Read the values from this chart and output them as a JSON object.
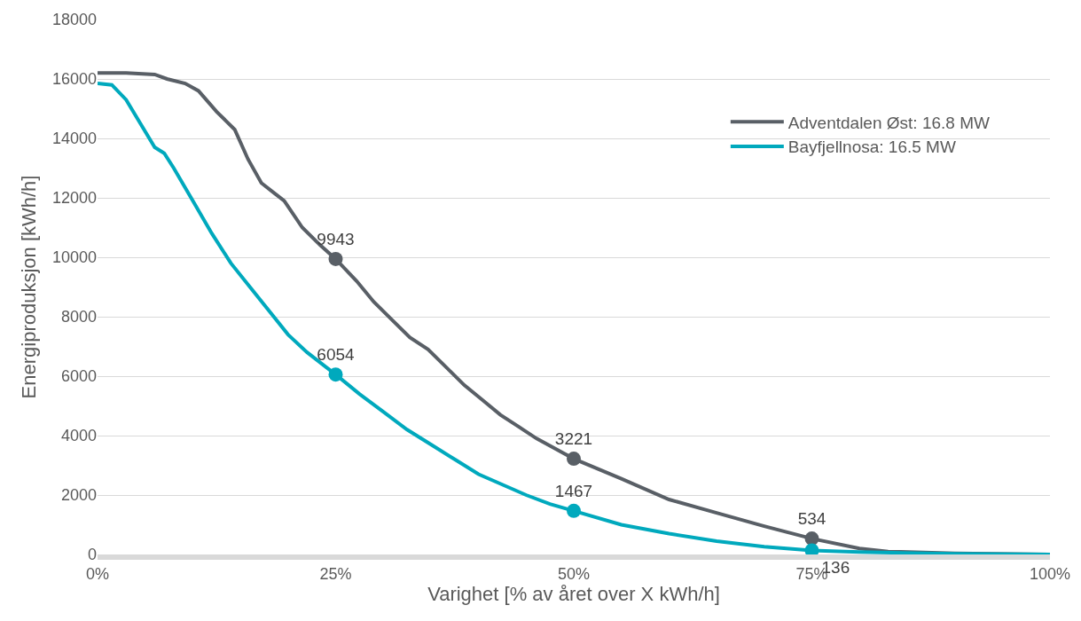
{
  "chart_data": {
    "type": "line",
    "xlabel": "Varighet [% av året over X kWh/h]",
    "ylabel": "Energiproduksjon [kWh/h]",
    "xlim": [
      0,
      100
    ],
    "ylim": [
      0,
      18000
    ],
    "xticks": [
      {
        "value": 0,
        "label": "0%"
      },
      {
        "value": 25,
        "label": "25%"
      },
      {
        "value": 50,
        "label": "50%"
      },
      {
        "value": 75,
        "label": "75%"
      },
      {
        "value": 100,
        "label": "100%"
      }
    ],
    "yticks": [
      0,
      2000,
      4000,
      6000,
      8000,
      10000,
      12000,
      14000,
      16000,
      18000
    ],
    "grid": "y",
    "legend": "right",
    "line_style": "solid",
    "series": [
      {
        "name": "Adventdalen Øst: 16.8 MW",
        "color": "#595f66",
        "x": [
          0,
          3,
          6,
          7.3,
          9.2,
          10.6,
          12.5,
          14.4,
          15.8,
          17.2,
          18.4,
          19.6,
          21.5,
          23.4,
          25,
          27.2,
          29,
          30.9,
          32.8,
          34.7,
          36.6,
          38.5,
          40.4,
          42.3,
          44.2,
          46.1,
          50,
          55,
          60,
          65,
          70,
          75,
          80,
          83,
          90,
          100
        ],
        "values": [
          16200,
          16200,
          16150,
          16000,
          15850,
          15600,
          14900,
          14300,
          13300,
          12500,
          12200,
          11900,
          11000,
          10400,
          9943,
          9200,
          8500,
          7900,
          7300,
          6900,
          6300,
          5700,
          5200,
          4700,
          4300,
          3900,
          3221,
          2550,
          1850,
          1400,
          950,
          534,
          200,
          100,
          40,
          0
        ]
      },
      {
        "name": "Bayfjellnosa: 16.5 MW",
        "color": "#00a9bd",
        "x": [
          0,
          1.5,
          3,
          4.5,
          6,
          7,
          8,
          10,
          12,
          14,
          16,
          18,
          20,
          22,
          24,
          25,
          27.5,
          30,
          32.5,
          35,
          37.5,
          40,
          42.5,
          45,
          47.5,
          50,
          55,
          60,
          65,
          70,
          75,
          80,
          90,
          100
        ],
        "values": [
          15850,
          15800,
          15300,
          14500,
          13700,
          13500,
          13000,
          11900,
          10800,
          9800,
          9000,
          8200,
          7400,
          6800,
          6300,
          6054,
          5400,
          4800,
          4200,
          3700,
          3200,
          2700,
          2350,
          2000,
          1700,
          1467,
          1000,
          700,
          450,
          260,
          136,
          80,
          20,
          0
        ]
      },
      {
        "type": "scatter",
        "marker": "circle",
        "color": "#595f66",
        "x": [
          25,
          50,
          75
        ],
        "values": [
          9943,
          3221,
          534
        ],
        "value_labels": [
          "9943",
          "3221",
          "534"
        ]
      },
      {
        "type": "scatter",
        "marker": "circle",
        "color": "#00a9bd",
        "x": [
          25,
          50,
          75
        ],
        "values": [
          6054,
          1467,
          136
        ],
        "value_labels": [
          "6054",
          "1467",
          "136"
        ]
      }
    ]
  }
}
